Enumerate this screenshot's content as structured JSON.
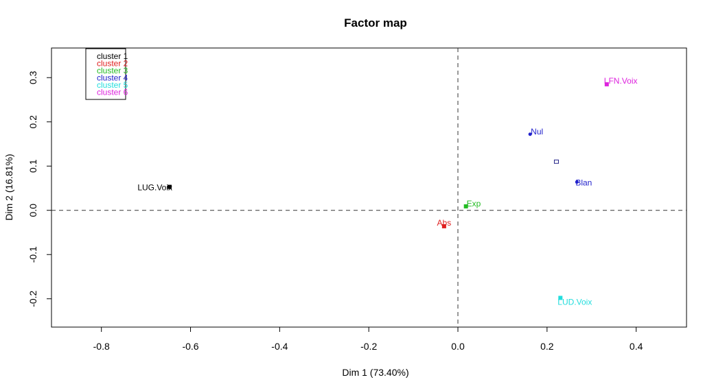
{
  "chart_data": {
    "type": "scatter",
    "title": "Factor map",
    "xlabel": "Dim 1 (73.40%)",
    "ylabel": "Dim 2 (16.81%)",
    "xlim": [
      -0.912,
      0.513
    ],
    "ylim": [
      -0.264,
      0.367
    ],
    "xticks": [
      -0.8,
      -0.6,
      -0.4,
      -0.2,
      0.0,
      0.2,
      0.4
    ],
    "xtick_labels": [
      "-0.8",
      "-0.6",
      "-0.4",
      "-0.2",
      "0.0",
      "0.2",
      "0.4"
    ],
    "yticks": [
      -0.2,
      -0.1,
      0.0,
      0.1,
      0.2,
      0.3
    ],
    "ytick_labels": [
      "-0.2",
      "-0.1",
      "0.0",
      "0.1",
      "0.2",
      "0.3"
    ],
    "grid": false,
    "reference_lines": {
      "x": 0,
      "y": 0,
      "style": "dashed"
    },
    "legend": {
      "placement": "top-left",
      "entries": [
        {
          "label": "cluster 1",
          "color": "#000000"
        },
        {
          "label": "cluster 2",
          "color": "#df2020"
        },
        {
          "label": "cluster 3",
          "color": "#22bb22"
        },
        {
          "label": "cluster 4",
          "color": "#2222cc"
        },
        {
          "label": "cluster 5",
          "color": "#22dddd"
        },
        {
          "label": "cluster 6",
          "color": "#dd22dd"
        }
      ]
    },
    "points": [
      {
        "label": "LUG.Voix",
        "x": -0.647,
        "y": 0.053,
        "cluster": 1,
        "color": "#000000",
        "marker": "square"
      },
      {
        "label": "Abs",
        "x": -0.031,
        "y": -0.036,
        "cluster": 2,
        "color": "#df2020",
        "marker": "square"
      },
      {
        "label": "Exp",
        "x": 0.018,
        "y": 0.009,
        "cluster": 3,
        "color": "#22bb22",
        "marker": "square"
      },
      {
        "label": "Nul",
        "x": 0.162,
        "y": 0.172,
        "cluster": 4,
        "color": "#2222cc",
        "marker": "circle"
      },
      {
        "label": "Blan",
        "x": 0.267,
        "y": 0.064,
        "cluster": 4,
        "color": "#2222cc",
        "marker": "circle"
      },
      {
        "label": "",
        "x": 0.221,
        "y": 0.11,
        "cluster": 4,
        "color": "#222288",
        "marker": "open-square"
      },
      {
        "label": "LUD.Voix",
        "x": 0.23,
        "y": -0.198,
        "cluster": 5,
        "color": "#22dddd",
        "marker": "square"
      },
      {
        "label": "LFN.Voix",
        "x": 0.334,
        "y": 0.285,
        "cluster": 6,
        "color": "#dd22dd",
        "marker": "square"
      }
    ]
  }
}
